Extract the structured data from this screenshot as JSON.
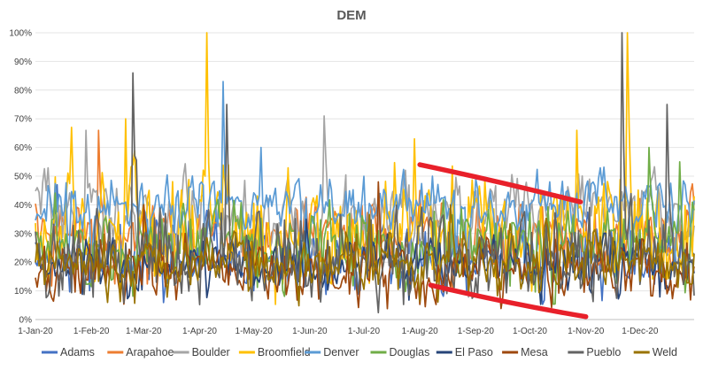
{
  "chart_data": {
    "type": "line",
    "title": "DEM",
    "xlabel": "",
    "ylabel": "",
    "ylim": [
      0,
      100
    ],
    "y_ticks": [
      "0%",
      "10%",
      "20%",
      "30%",
      "40%",
      "50%",
      "60%",
      "70%",
      "80%",
      "90%",
      "100%"
    ],
    "x_range_days": [
      0,
      365
    ],
    "x_ticks": [
      {
        "label": "1-Jan-20",
        "day": 0
      },
      {
        "label": "1-Feb-20",
        "day": 31
      },
      {
        "label": "1-Mar-20",
        "day": 60
      },
      {
        "label": "1-Apr-20",
        "day": 91
      },
      {
        "label": "1-May-20",
        "day": 121
      },
      {
        "label": "1-Jun-20",
        "day": 152
      },
      {
        "label": "1-Jul-20",
        "day": 182
      },
      {
        "label": "1-Aug-20",
        "day": 213
      },
      {
        "label": "1-Sep-20",
        "day": 244
      },
      {
        "label": "1-Oct-20",
        "day": 274
      },
      {
        "label": "1-Nov-20",
        "day": 305
      },
      {
        "label": "1-Dec-20",
        "day": 335
      }
    ],
    "grid": true,
    "legend_position": "bottom",
    "series": [
      {
        "name": "Adams",
        "color": "#4472C4",
        "base": 22,
        "amp": 9,
        "seed": 11,
        "spikes": [
          [
            12,
            47
          ],
          [
            245,
            28
          ]
        ]
      },
      {
        "name": "Arapahoe",
        "color": "#ED7D31",
        "base": 30,
        "amp": 9,
        "seed": 23,
        "spikes": [
          [
            35,
            66
          ],
          [
            213,
            45
          ]
        ]
      },
      {
        "name": "Boulder",
        "color": "#A5A5A5",
        "base": 36,
        "amp": 9,
        "seed": 37,
        "spikes": [
          [
            28,
            66
          ],
          [
            160,
            71
          ],
          [
            140,
            50
          ]
        ]
      },
      {
        "name": "Broomfield",
        "color": "#FFC000",
        "base": 30,
        "amp": 15,
        "seed": 41,
        "spikes": [
          [
            95,
            100
          ],
          [
            50,
            70
          ],
          [
            210,
            63
          ],
          [
            328,
            100
          ],
          [
            300,
            66
          ],
          [
            20,
            67
          ]
        ]
      },
      {
        "name": "Denver",
        "color": "#5B9BD5",
        "base": 40,
        "amp": 7,
        "seed": 53,
        "spikes": [
          [
            104,
            83
          ],
          [
            125,
            60
          ],
          [
            220,
            50
          ]
        ]
      },
      {
        "name": "Douglas",
        "color": "#70AD47",
        "base": 27,
        "amp": 9,
        "seed": 67,
        "spikes": [
          [
            340,
            60
          ],
          [
            357,
            55
          ]
        ]
      },
      {
        "name": "El Paso",
        "color": "#264478",
        "base": 19,
        "amp": 6,
        "seed": 71,
        "spikes": [
          [
            150,
            35
          ]
        ]
      },
      {
        "name": "Mesa",
        "color": "#9E480E",
        "base": 17,
        "amp": 8,
        "seed": 83,
        "spikes": [
          [
            190,
            48
          ],
          [
            60,
            40
          ]
        ]
      },
      {
        "name": "Pueblo",
        "color": "#636363",
        "base": 22,
        "amp": 12,
        "seed": 97,
        "spikes": [
          [
            54,
            86
          ],
          [
            106,
            75
          ],
          [
            325,
            100
          ],
          [
            350,
            75
          ]
        ]
      },
      {
        "name": "Weld",
        "color": "#997300",
        "base": 20,
        "amp": 8,
        "seed": 101,
        "spikes": [
          [
            230,
            40
          ]
        ]
      }
    ],
    "annotations": [
      {
        "type": "freehand-line",
        "color": "#E8202A",
        "from": {
          "day": 213,
          "value": 54
        },
        "to": {
          "day": 302,
          "value": 41
        }
      },
      {
        "type": "freehand-line",
        "color": "#E8202A",
        "from": {
          "day": 219,
          "value": 12
        },
        "to": {
          "day": 305,
          "value": 1
        }
      }
    ]
  }
}
